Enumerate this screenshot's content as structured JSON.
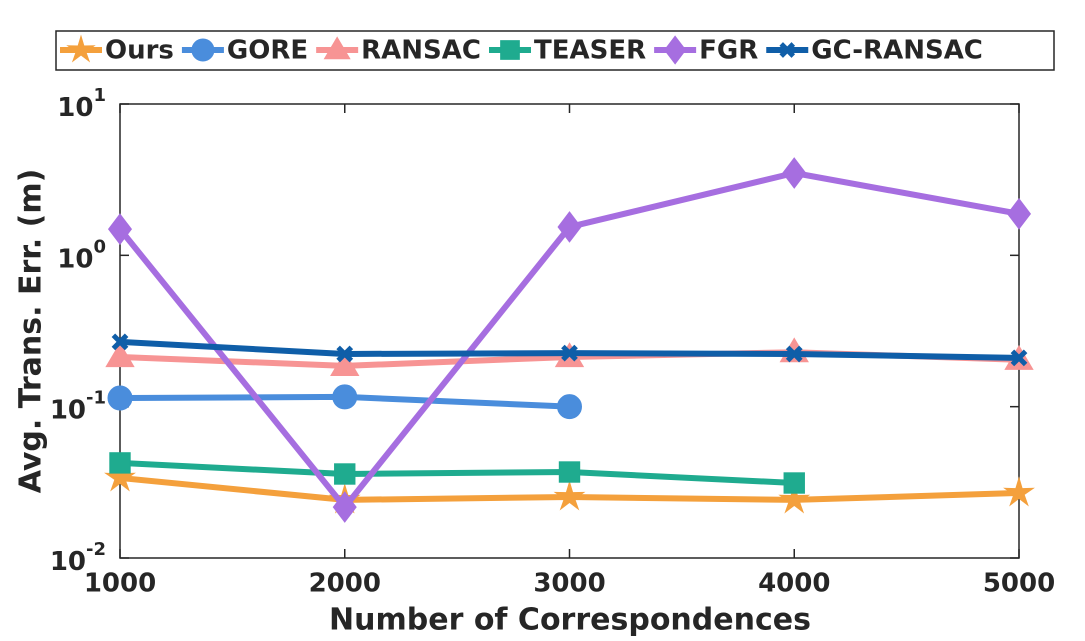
{
  "chart_data": {
    "type": "line",
    "x_label": "Number of Correspondences",
    "y_label": "Avg. Trans. Err. (m)",
    "x": [
      1000,
      2000,
      3000,
      4000,
      5000
    ],
    "xlim": [
      1000,
      5000
    ],
    "xticks": [
      1000,
      2000,
      3000,
      4000,
      5000
    ],
    "ylim": [
      0.01,
      10
    ],
    "yscale": "log",
    "yticks": [
      {
        "value": 0.01,
        "label": "10",
        "exponent": "-2"
      },
      {
        "value": 0.1,
        "label": "10",
        "exponent": "-1"
      },
      {
        "value": 1,
        "label": "10",
        "exponent": "0"
      },
      {
        "value": 10,
        "label": "10",
        "exponent": "1"
      }
    ],
    "legend": "top",
    "series": [
      {
        "name": "Ours",
        "color": "#f4a03c",
        "marker": "star",
        "values": [
          0.0338,
          0.0242,
          0.0253,
          0.0242,
          0.0269
        ]
      },
      {
        "name": "GORE",
        "color": "#4a8ddc",
        "marker": "circle",
        "values": [
          0.114,
          0.116,
          0.1,
          null,
          null
        ]
      },
      {
        "name": "RANSAC",
        "color": "#f79494",
        "marker": "triangle",
        "values": [
          0.213,
          0.186,
          0.213,
          0.229,
          0.204
        ]
      },
      {
        "name": "TEASER",
        "color": "#1fab8f",
        "marker": "square",
        "values": [
          0.0425,
          0.0359,
          0.037,
          0.0313,
          null
        ]
      },
      {
        "name": "FGR",
        "color": "#a66ee0",
        "marker": "diamond",
        "values": [
          1.49,
          0.0217,
          1.54,
          3.5,
          1.88
        ]
      },
      {
        "name": "GC-RANSAC",
        "color": "#0f5ea8",
        "marker": "x",
        "values": [
          0.268,
          0.223,
          0.226,
          0.223,
          0.21
        ]
      }
    ]
  }
}
